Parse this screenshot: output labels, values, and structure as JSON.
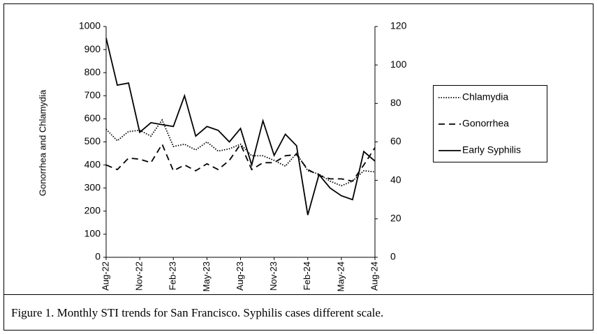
{
  "chart_data": {
    "type": "line",
    "caption": "Figure 1. Monthly STI trends for San Francisco. Syphilis cases different scale.",
    "ylabel": "Gonorrhea and Chlamydia",
    "categories": [
      "Aug-22",
      null,
      null,
      "Nov-22",
      null,
      null,
      "Feb-23",
      null,
      null,
      "May-23",
      null,
      null,
      "Aug-23",
      null,
      null,
      "Nov-23",
      null,
      null,
      "Feb-24",
      null,
      null,
      "May-24",
      null,
      null,
      "Aug-24"
    ],
    "ylim": [
      0,
      1000
    ],
    "yticks": [
      0,
      100,
      200,
      300,
      400,
      500,
      600,
      700,
      800,
      900,
      1000
    ],
    "y2lim": [
      0,
      120
    ],
    "y2ticks": [
      0,
      20,
      40,
      60,
      80,
      100,
      120
    ],
    "legend": "right",
    "series": [
      {
        "name": "Chlamydia",
        "color": "#000000",
        "dash": "dotted",
        "values": [
          555,
          505,
          545,
          550,
          525,
          595,
          480,
          490,
          465,
          500,
          460,
          470,
          490,
          440,
          440,
          420,
          395,
          450,
          375,
          360,
          330,
          310,
          330,
          375,
          370
        ]
      },
      {
        "name": "Gonorrhea",
        "color": "#000000",
        "dash": "dashed",
        "values": [
          400,
          380,
          430,
          425,
          410,
          490,
          375,
          400,
          375,
          405,
          380,
          420,
          490,
          380,
          410,
          410,
          440,
          445,
          380,
          355,
          340,
          340,
          330,
          400,
          475
        ]
      },
      {
        "name": "Early Syphilis",
        "color": "#000000",
        "dash": "solid",
        "axis": "y2",
        "values": [
          114,
          89.5,
          90.6,
          65,
          70,
          69,
          68,
          84,
          63,
          68,
          66,
          60,
          67,
          48,
          71,
          53,
          64,
          58,
          22,
          43,
          36,
          32,
          30,
          55,
          50
        ]
      }
    ]
  }
}
